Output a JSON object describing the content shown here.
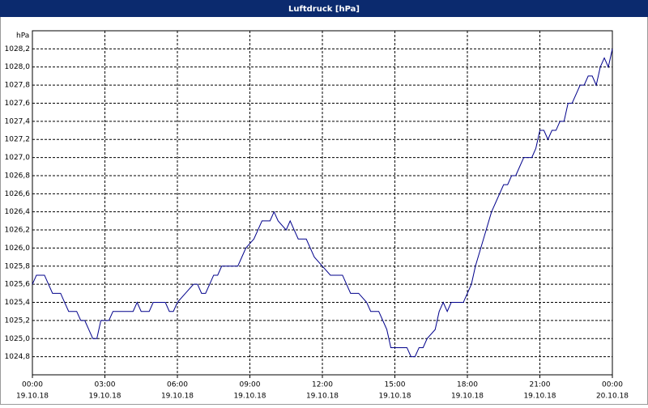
{
  "chart_data": {
    "type": "line",
    "title": "Luftdruck [hPa]",
    "y_unit": "hPa",
    "x": [
      "2018-10-19T00:00",
      "2018-10-19T00:10",
      "2018-10-19T00:30",
      "2018-10-19T00:40",
      "2018-10-19T00:50",
      "2018-10-19T01:10",
      "2018-10-19T01:20",
      "2018-10-19T01:30",
      "2018-10-19T01:50",
      "2018-10-19T02:00",
      "2018-10-19T02:10",
      "2018-10-19T02:20",
      "2018-10-19T02:30",
      "2018-10-19T02:40",
      "2018-10-19T02:50",
      "2018-10-19T03:10",
      "2018-10-19T03:20",
      "2018-10-19T04:10",
      "2018-10-19T04:20",
      "2018-10-19T04:30",
      "2018-10-19T04:50",
      "2018-10-19T05:00",
      "2018-10-19T05:30",
      "2018-10-19T05:40",
      "2018-10-19T05:50",
      "2018-10-19T06:00",
      "2018-10-19T06:20",
      "2018-10-19T06:40",
      "2018-10-19T06:50",
      "2018-10-19T07:00",
      "2018-10-19T07:10",
      "2018-10-19T07:20",
      "2018-10-19T07:30",
      "2018-10-19T07:40",
      "2018-10-19T07:50",
      "2018-10-19T08:30",
      "2018-10-19T08:40",
      "2018-10-19T08:50",
      "2018-10-19T09:10",
      "2018-10-19T09:20",
      "2018-10-19T09:30",
      "2018-10-19T09:50",
      "2018-10-19T10:00",
      "2018-10-19T10:10",
      "2018-10-19T10:30",
      "2018-10-19T10:40",
      "2018-10-19T10:50",
      "2018-10-19T11:00",
      "2018-10-19T11:20",
      "2018-10-19T11:30",
      "2018-10-19T11:40",
      "2018-10-19T12:00",
      "2018-10-19T12:20",
      "2018-10-19T12:50",
      "2018-10-19T13:00",
      "2018-10-19T13:10",
      "2018-10-19T13:30",
      "2018-10-19T13:50",
      "2018-10-19T14:00",
      "2018-10-19T14:20",
      "2018-10-19T14:30",
      "2018-10-19T14:40",
      "2018-10-19T14:50",
      "2018-10-19T15:30",
      "2018-10-19T15:40",
      "2018-10-19T15:50",
      "2018-10-19T16:00",
      "2018-10-19T16:10",
      "2018-10-19T16:20",
      "2018-10-19T16:40",
      "2018-10-19T16:50",
      "2018-10-19T17:00",
      "2018-10-19T17:10",
      "2018-10-19T17:20",
      "2018-10-19T17:50",
      "2018-10-19T18:00",
      "2018-10-19T18:10",
      "2018-10-19T18:20",
      "2018-10-19T18:40",
      "2018-10-19T19:00",
      "2018-10-19T19:10",
      "2018-10-19T19:20",
      "2018-10-19T19:30",
      "2018-10-19T19:40",
      "2018-10-19T19:50",
      "2018-10-19T20:00",
      "2018-10-19T20:10",
      "2018-10-19T20:20",
      "2018-10-19T20:40",
      "2018-10-19T20:50",
      "2018-10-19T21:00",
      "2018-10-19T21:10",
      "2018-10-19T21:20",
      "2018-10-19T21:30",
      "2018-10-19T21:40",
      "2018-10-19T21:50",
      "2018-10-19T22:00",
      "2018-10-19T22:10",
      "2018-10-19T22:20",
      "2018-10-19T22:30",
      "2018-10-19T22:40",
      "2018-10-19T22:50",
      "2018-10-19T23:00",
      "2018-10-19T23:10",
      "2018-10-19T23:20",
      "2018-10-19T23:30",
      "2018-10-19T23:40",
      "2018-10-19T23:50",
      "2018-10-20T00:00"
    ],
    "values": [
      1025.6,
      1025.7,
      1025.7,
      1025.6,
      1025.5,
      1025.5,
      1025.4,
      1025.3,
      1025.3,
      1025.2,
      1025.2,
      1025.1,
      1025.0,
      1025.0,
      1025.2,
      1025.2,
      1025.3,
      1025.3,
      1025.4,
      1025.3,
      1025.3,
      1025.4,
      1025.4,
      1025.3,
      1025.3,
      1025.4,
      1025.5,
      1025.6,
      1025.6,
      1025.5,
      1025.5,
      1025.6,
      1025.7,
      1025.7,
      1025.8,
      1025.8,
      1025.9,
      1026.0,
      1026.1,
      1026.2,
      1026.3,
      1026.3,
      1026.4,
      1026.3,
      1026.2,
      1026.3,
      1026.2,
      1026.1,
      1026.1,
      1026.0,
      1025.9,
      1025.8,
      1025.7,
      1025.7,
      1025.6,
      1025.5,
      1025.5,
      1025.4,
      1025.3,
      1025.3,
      1025.2,
      1025.1,
      1024.9,
      1024.9,
      1024.8,
      1024.8,
      1024.9,
      1024.9,
      1025.0,
      1025.1,
      1025.3,
      1025.4,
      1025.3,
      1025.4,
      1025.4,
      1025.5,
      1025.6,
      1025.8,
      1026.1,
      1026.4,
      1026.5,
      1026.6,
      1026.7,
      1026.7,
      1026.8,
      1026.8,
      1026.9,
      1027.0,
      1027.0,
      1027.1,
      1027.3,
      1027.3,
      1027.2,
      1027.3,
      1027.3,
      1027.4,
      1027.4,
      1027.6,
      1027.6,
      1027.7,
      1027.8,
      1027.8,
      1027.9,
      1027.9,
      1027.8,
      1028.0,
      1028.1,
      1028.0,
      1028.2
    ],
    "color": "#00008b",
    "xlim": [
      "2018-10-19T00:00",
      "2018-10-20T00:00"
    ],
    "xticks": [
      {
        "value": "2018-10-19T00:00",
        "label": [
          "00:00",
          "19.10.18"
        ]
      },
      {
        "value": "2018-10-19T03:00",
        "label": [
          "03:00",
          "19.10.18"
        ]
      },
      {
        "value": "2018-10-19T06:00",
        "label": [
          "06:00",
          "19.10.18"
        ]
      },
      {
        "value": "2018-10-19T09:00",
        "label": [
          "09:00",
          "19.10.18"
        ]
      },
      {
        "value": "2018-10-19T12:00",
        "label": [
          "12:00",
          "19.10.18"
        ]
      },
      {
        "value": "2018-10-19T15:00",
        "label": [
          "15:00",
          "19.10.18"
        ]
      },
      {
        "value": "2018-10-19T18:00",
        "label": [
          "18:00",
          "19.10.18"
        ]
      },
      {
        "value": "2018-10-19T21:00",
        "label": [
          "21:00",
          "19.10.18"
        ]
      },
      {
        "value": "2018-10-20T00:00",
        "label": [
          "00:00",
          "20.10.18"
        ]
      }
    ],
    "ylim": [
      1024.6,
      1028.4
    ],
    "yticks": [
      {
        "value": 1024.8,
        "label": "1024,8"
      },
      {
        "value": 1025.0,
        "label": "1025,0"
      },
      {
        "value": 1025.2,
        "label": "1025,2"
      },
      {
        "value": 1025.4,
        "label": "1025,4"
      },
      {
        "value": 1025.6,
        "label": "1025,6"
      },
      {
        "value": 1025.8,
        "label": "1025,8"
      },
      {
        "value": 1026.0,
        "label": "1026,0"
      },
      {
        "value": 1026.2,
        "label": "1026,2"
      },
      {
        "value": 1026.4,
        "label": "1026,4"
      },
      {
        "value": 1026.6,
        "label": "1026,6"
      },
      {
        "value": 1026.8,
        "label": "1026,8"
      },
      {
        "value": 1027.0,
        "label": "1027,0"
      },
      {
        "value": 1027.2,
        "label": "1027,2"
      },
      {
        "value": 1027.4,
        "label": "1027,4"
      },
      {
        "value": 1027.6,
        "label": "1027,6"
      },
      {
        "value": 1027.8,
        "label": "1027,8"
      },
      {
        "value": 1028.0,
        "label": "1028,0"
      },
      {
        "value": 1028.2,
        "label": "1028,2"
      }
    ],
    "grid": true
  }
}
